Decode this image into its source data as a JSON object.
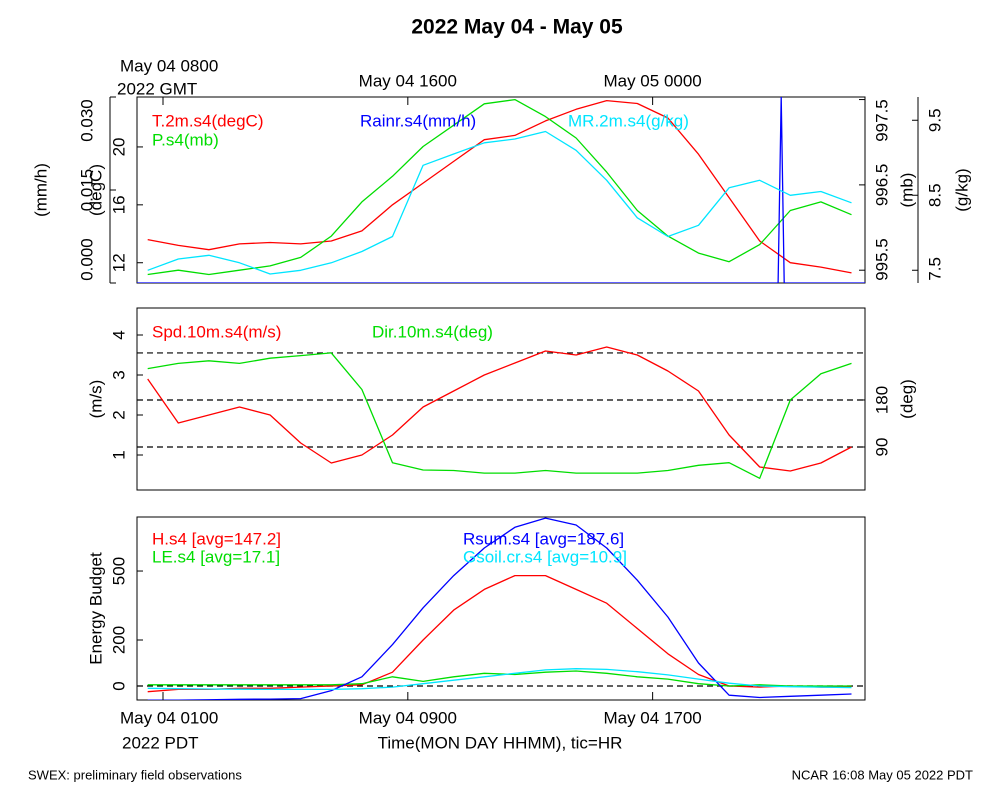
{
  "title": "2022 May 04 - May 05",
  "footer_left": "SWEX: preliminary field observations",
  "footer_right": "NCAR 16:08 May 05 2022 PDT",
  "chart_data": [
    {
      "type": "line",
      "x": [
        0.5,
        1.5,
        2.5,
        3.5,
        4.5,
        5.5,
        6.5,
        7.5,
        8.5,
        9.5,
        10.5,
        11.5,
        12.5,
        13.5,
        14.5,
        15.5,
        16.5,
        17.5,
        18.5,
        19.5,
        20.5,
        21.5,
        22.5,
        23.5
      ],
      "xlim": [
        0.15,
        23.94
      ],
      "x2ticks": [
        {
          "value": 1,
          "label": "May 04 0800"
        },
        {
          "value": 9,
          "label": "May 04 1600"
        },
        {
          "value": 17,
          "label": "May 05 0000"
        }
      ],
      "x2_year": "2022 GMT",
      "axes": [
        {
          "label": "(degC)",
          "side": "left",
          "lim": [
            10.6,
            23.45
          ],
          "ticks": [
            12,
            16,
            20
          ]
        },
        {
          "label": "(mm/h)",
          "side": "left",
          "lim": [
            0,
            0.03
          ],
          "ticks": [
            {
              "value": 0,
              "label": "0.000"
            },
            {
              "value": 0.015,
              "label": "0.015"
            },
            {
              "value": 0.03,
              "label": "0.030"
            }
          ]
        },
        {
          "label": "(mb)",
          "side": "right",
          "lim": [
            995.35,
            997.53
          ],
          "ticks": [
            995.5,
            996.5,
            997.5
          ]
        },
        {
          "label": "(g/kg)",
          "side": "right",
          "lim": [
            7.33,
            9.81
          ],
          "ticks": [
            7.5,
            8.5,
            9.5
          ]
        }
      ],
      "series": [
        {
          "name": "T.2m.s4(degC)",
          "color": "#ff0000",
          "axis": 0,
          "values": [
            13.6,
            13.2,
            12.9,
            13.3,
            13.4,
            13.3,
            13.5,
            14.2,
            16,
            17.5,
            19,
            20.5,
            20.8,
            21.8,
            22.6,
            23.2,
            23,
            22,
            19.5,
            16.5,
            13.5,
            12,
            11.7,
            11.3
          ]
        },
        {
          "name": "P.s4(mb)",
          "color": "#00dd00",
          "axis": 2,
          "values": [
            995.45,
            995.5,
            995.45,
            995.5,
            995.55,
            995.65,
            995.9,
            996.3,
            996.6,
            996.95,
            997.2,
            997.45,
            997.5,
            997.3,
            997.05,
            996.65,
            996.2,
            995.9,
            995.7,
            995.6,
            995.8,
            996.2,
            996.3,
            996.15
          ]
        },
        {
          "name": "Rainr.s4(mm/h)",
          "color": "#0000ff",
          "axis": 1,
          "x": [
            0.15,
            21.1,
            21.2,
            21.3,
            23.94
          ],
          "values": [
            0,
            0,
            0.03,
            0,
            0
          ]
        },
        {
          "name": "MR.2m.s4(g/kg)",
          "color": "#00e5ff",
          "axis": 3,
          "values": [
            7.5,
            7.65,
            7.7,
            7.6,
            7.45,
            7.5,
            7.6,
            7.75,
            7.95,
            8.9,
            9.05,
            9.2,
            9.25,
            9.35,
            9.1,
            8.7,
            8.2,
            7.95,
            8.1,
            8.6,
            8.7,
            8.5,
            8.55,
            8.4
          ]
        }
      ]
    },
    {
      "type": "line",
      "x": [
        0.5,
        1.5,
        2.5,
        3.5,
        4.5,
        5.5,
        6.5,
        7.5,
        8.5,
        9.5,
        10.5,
        11.5,
        12.5,
        13.5,
        14.5,
        15.5,
        16.5,
        17.5,
        18.5,
        19.5,
        20.5,
        21.5,
        22.5,
        23.5
      ],
      "xlim": [
        0.15,
        23.94
      ],
      "axes": [
        {
          "label": "(m/s)",
          "side": "left",
          "lim": [
            0.125,
            4.675
          ],
          "ticks": [
            1,
            2,
            3,
            4
          ]
        },
        {
          "label": "(deg)",
          "side": "right",
          "lim": [
            7.7,
            356
          ],
          "ticks": [
            90,
            180
          ]
        }
      ],
      "hlines": {
        "axis": 1,
        "values": [
          90,
          180,
          270
        ]
      },
      "series": [
        {
          "name": "Spd.10m.s4(m/s)",
          "color": "#ff0000",
          "axis": 0,
          "values": [
            2.9,
            1.8,
            2.0,
            2.2,
            2.0,
            1.3,
            0.8,
            1.0,
            1.5,
            2.2,
            2.6,
            3.0,
            3.3,
            3.6,
            3.5,
            3.7,
            3.5,
            3.1,
            2.6,
            1.5,
            0.7,
            0.6,
            0.8,
            1.2
          ]
        },
        {
          "name": "Dir.10m.s4(deg)",
          "color": "#00dd00",
          "axis": 1,
          "values": [
            240,
            250,
            255,
            250,
            260,
            265,
            270,
            200,
            60,
            46,
            45,
            40,
            40,
            45,
            40,
            40,
            40,
            45,
            55,
            60,
            30,
            180,
            230,
            250
          ]
        }
      ]
    },
    {
      "type": "line",
      "x": [
        0.5,
        1.5,
        2.5,
        3.5,
        4.5,
        5.5,
        6.5,
        7.5,
        8.5,
        9.5,
        10.5,
        11.5,
        12.5,
        13.5,
        14.5,
        15.5,
        16.5,
        17.5,
        18.5,
        19.5,
        20.5,
        21.5,
        22.5,
        23.5
      ],
      "xlim": [
        0.15,
        23.94
      ],
      "xticks": [
        {
          "value": 1,
          "label": "May 04 0100"
        },
        {
          "value": 9,
          "label": "May 04 0900"
        },
        {
          "value": 17,
          "label": "May 04 1700"
        }
      ],
      "x_year": "2022 PDT",
      "xlabel": "Time(MON DAY HHMM), tic=HR",
      "axes": [
        {
          "label": "Energy Budget",
          "side": "left",
          "lim": [
            -61,
            735
          ],
          "ticks": [
            0,
            200,
            500
          ]
        }
      ],
      "hlines": {
        "axis": 0,
        "values": [
          0
        ]
      },
      "series": [
        {
          "name": "H.s4 [avg=147.2]",
          "color": "#ff0000",
          "axis": 0,
          "values": [
            -25,
            -15,
            -15,
            -10,
            -10,
            -5,
            0,
            5,
            60,
            200,
            330,
            420,
            480,
            480,
            420,
            360,
            250,
            140,
            50,
            0,
            -5,
            0,
            -5,
            -5
          ]
        },
        {
          "name": "LE.s4 [avg=17.1]",
          "color": "#00dd00",
          "axis": 0,
          "values": [
            5,
            5,
            5,
            5,
            5,
            5,
            5,
            10,
            40,
            20,
            40,
            55,
            50,
            60,
            65,
            55,
            40,
            30,
            10,
            0,
            5,
            0,
            0,
            0
          ]
        },
        {
          "name": "Rsum.s4 [avg=187.6]",
          "color": "#0000ff",
          "axis": 0,
          "values": [
            -62,
            -62,
            -60,
            -58,
            -57,
            -55,
            -20,
            40,
            180,
            340,
            480,
            600,
            690,
            730,
            700,
            600,
            460,
            300,
            100,
            -40,
            -50,
            -45,
            -40,
            -35
          ]
        },
        {
          "name": "Gsoil.cr.s4 [avg=10.9]",
          "color": "#00e5ff",
          "axis": 0,
          "values": [
            -10,
            -12,
            -13,
            -14,
            -15,
            -15,
            -15,
            -12,
            -5,
            10,
            25,
            40,
            55,
            70,
            75,
            72,
            62,
            48,
            30,
            12,
            0,
            -3,
            -5,
            -7
          ]
        }
      ]
    }
  ]
}
